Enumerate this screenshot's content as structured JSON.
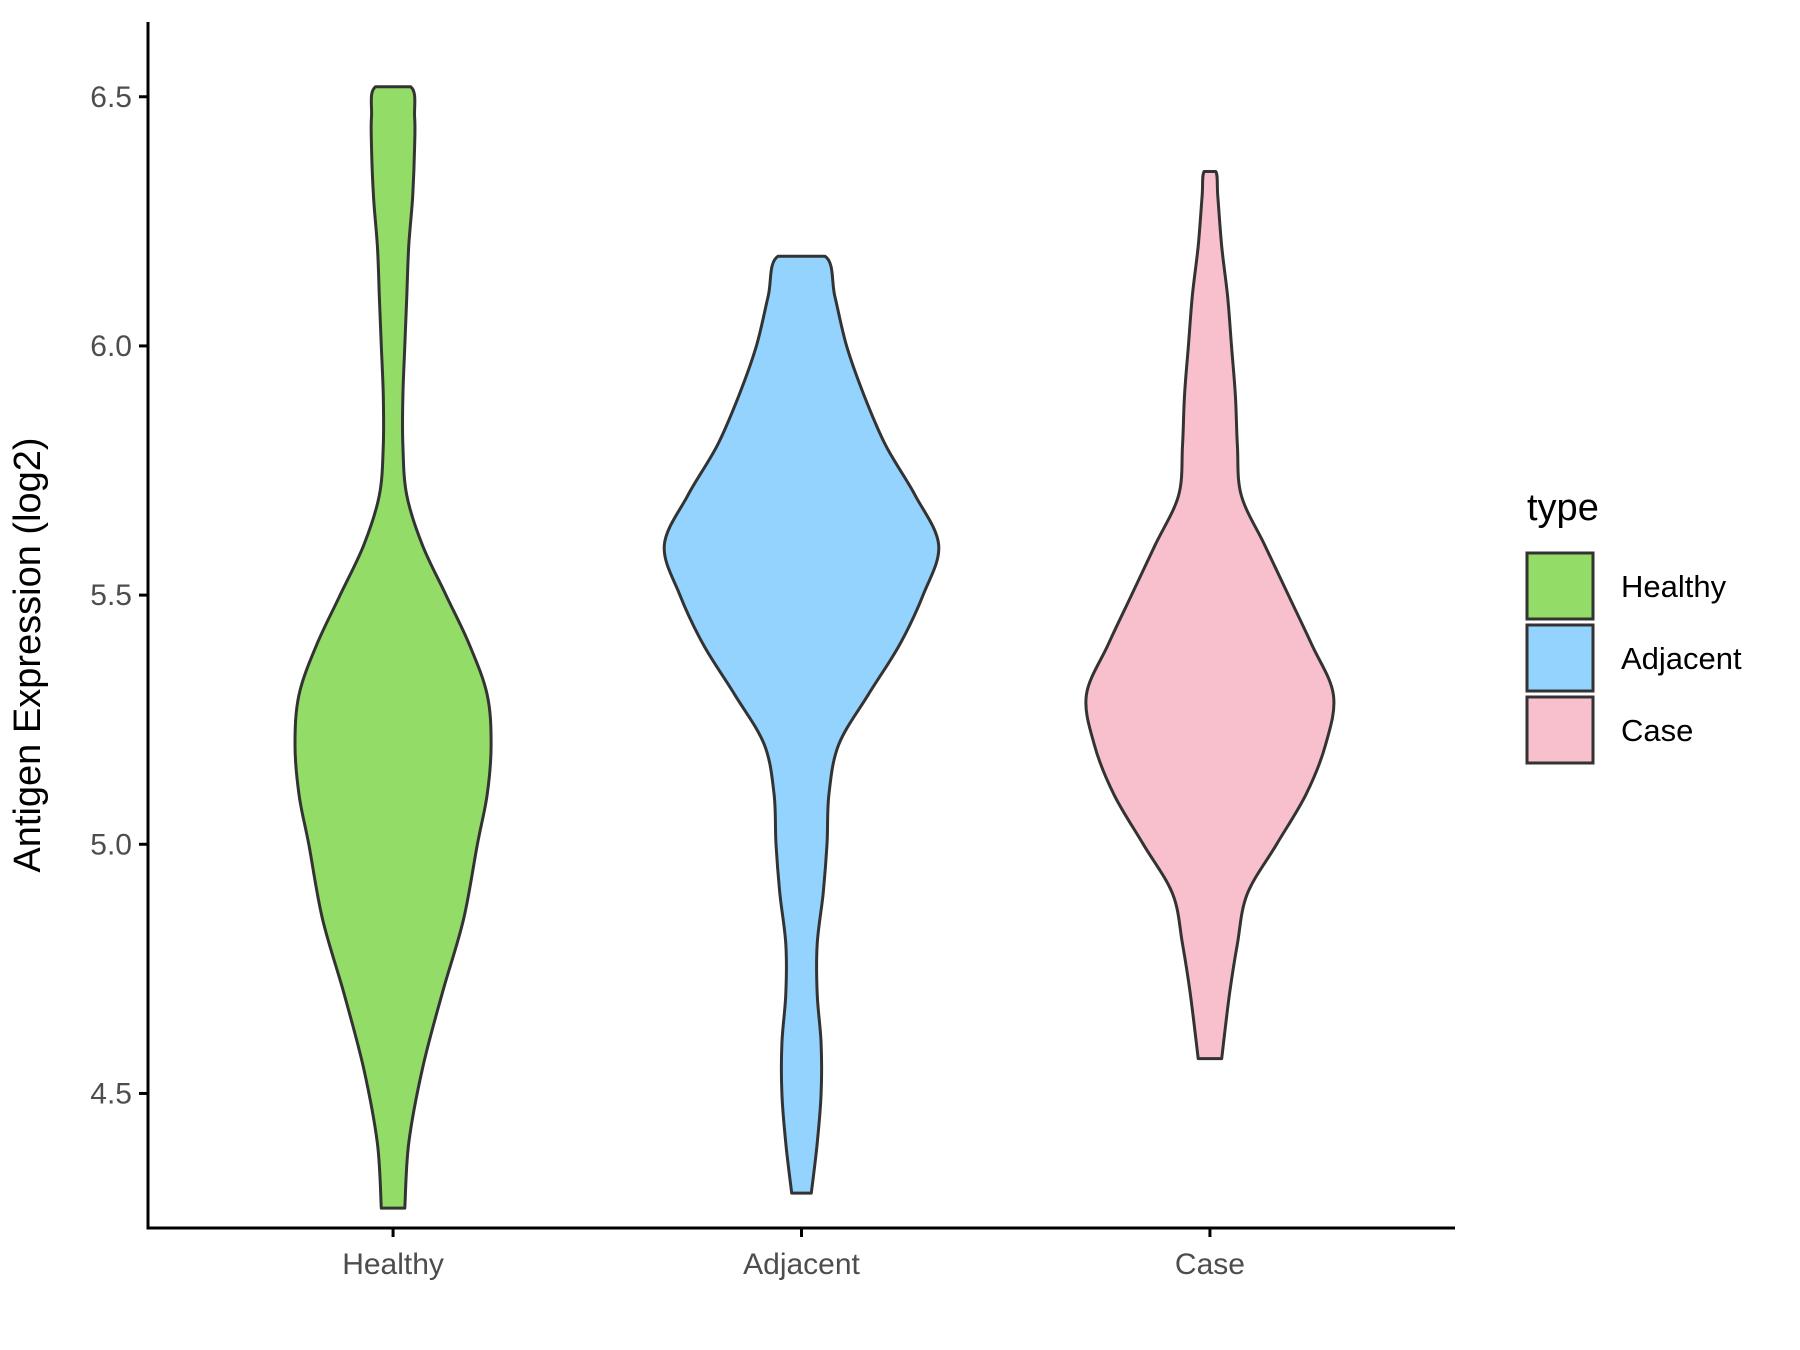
{
  "chart_data": {
    "type": "violin",
    "title": "",
    "xlabel": "",
    "ylabel": "Antigen Expression (log2)",
    "ylim": [
      4.23,
      6.65
    ],
    "yticks": [
      4.5,
      5.0,
      5.5,
      6.0,
      6.5
    ],
    "ytick_labels": [
      "4.5",
      "5.0",
      "5.5",
      "6.0",
      "6.5"
    ],
    "categories": [
      "Healthy",
      "Adjacent",
      "Case"
    ],
    "grid": false,
    "legend": {
      "title": "type",
      "placement": "right",
      "entries": [
        "Healthy",
        "Adjacent",
        "Case"
      ]
    },
    "series": [
      {
        "name": "Healthy",
        "color": "#93dc68",
        "min": 4.27,
        "max": 6.52,
        "profile": [
          [
            4.27,
            0.06
          ],
          [
            4.4,
            0.08
          ],
          [
            4.55,
            0.15
          ],
          [
            4.7,
            0.25
          ],
          [
            4.85,
            0.36
          ],
          [
            5.0,
            0.43
          ],
          [
            5.1,
            0.48
          ],
          [
            5.2,
            0.5
          ],
          [
            5.3,
            0.48
          ],
          [
            5.4,
            0.39
          ],
          [
            5.5,
            0.27
          ],
          [
            5.6,
            0.15
          ],
          [
            5.7,
            0.07
          ],
          [
            5.8,
            0.05
          ],
          [
            5.9,
            0.05
          ],
          [
            6.0,
            0.06
          ],
          [
            6.1,
            0.07
          ],
          [
            6.2,
            0.08
          ],
          [
            6.3,
            0.1
          ],
          [
            6.4,
            0.11
          ],
          [
            6.46,
            0.11
          ],
          [
            6.52,
            0.09
          ]
        ]
      },
      {
        "name": "Adjacent",
        "color": "#93d3fe",
        "min": 4.3,
        "max": 6.18,
        "profile": [
          [
            4.3,
            0.05
          ],
          [
            4.4,
            0.08
          ],
          [
            4.5,
            0.1
          ],
          [
            4.6,
            0.1
          ],
          [
            4.7,
            0.08
          ],
          [
            4.8,
            0.08
          ],
          [
            4.9,
            0.11
          ],
          [
            5.0,
            0.13
          ],
          [
            5.1,
            0.14
          ],
          [
            5.2,
            0.19
          ],
          [
            5.3,
            0.34
          ],
          [
            5.4,
            0.5
          ],
          [
            5.5,
            0.62
          ],
          [
            5.6,
            0.7
          ],
          [
            5.7,
            0.58
          ],
          [
            5.8,
            0.43
          ],
          [
            5.9,
            0.32
          ],
          [
            6.0,
            0.23
          ],
          [
            6.1,
            0.17
          ],
          [
            6.18,
            0.12
          ]
        ]
      },
      {
        "name": "Case",
        "color": "#f8c0cc",
        "min": 4.57,
        "max": 6.35,
        "profile": [
          [
            4.57,
            0.06
          ],
          [
            4.7,
            0.1
          ],
          [
            4.8,
            0.14
          ],
          [
            4.9,
            0.19
          ],
          [
            5.0,
            0.34
          ],
          [
            5.1,
            0.49
          ],
          [
            5.2,
            0.59
          ],
          [
            5.3,
            0.63
          ],
          [
            5.4,
            0.52
          ],
          [
            5.5,
            0.4
          ],
          [
            5.6,
            0.28
          ],
          [
            5.7,
            0.16
          ],
          [
            5.8,
            0.14
          ],
          [
            5.9,
            0.13
          ],
          [
            6.0,
            0.11
          ],
          [
            6.1,
            0.09
          ],
          [
            6.2,
            0.06
          ],
          [
            6.3,
            0.04
          ],
          [
            6.35,
            0.03
          ]
        ]
      }
    ]
  }
}
